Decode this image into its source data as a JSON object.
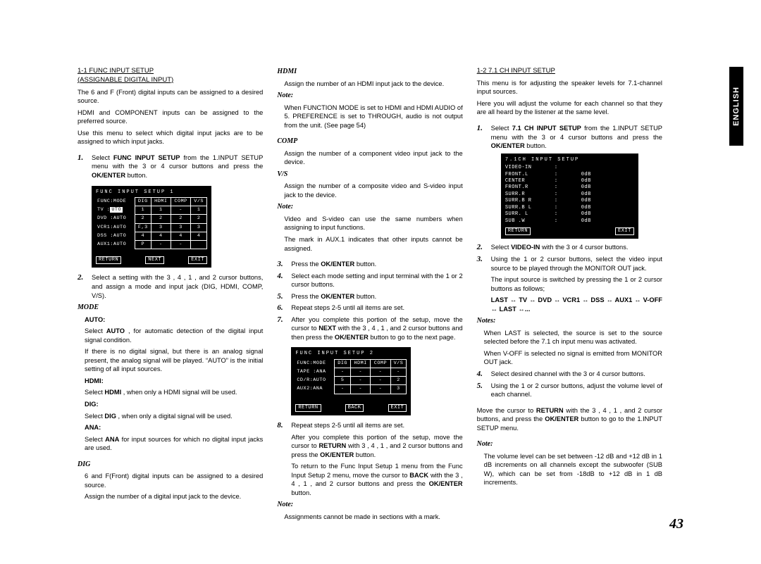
{
  "side_tab": "ENGLISH",
  "page_number": "43",
  "col1": {
    "title_line1": "1-1  FUNC INPUT SETUP",
    "title_line2": "(ASSIGNABLE DIGITAL INPUT)",
    "intro1": "The 6 and F (Front) digital inputs can be assigned to a desired source.",
    "intro2": "HDMI and COMPONENT inputs can be assigned to the preferred source.",
    "intro3": "Use this menu to select which digital input jacks are to be assigned to which input jacks.",
    "step1_a": "Select ",
    "step1_b": "FUNC INPUT SETUP",
    "step1_c": " from the 1.INPUT SETUP menu with the 3 or 4 cursor buttons and press the ",
    "step1_d": "OK/ENTER",
    "step1_e": " button.",
    "panel1": {
      "title": "FUNC INPUT SETUP 1",
      "head": [
        "FUNC:MODE",
        "DIG",
        "HDMI",
        "COMP",
        "V/S"
      ],
      "rows": [
        [
          "TV   :",
          "UTO",
          "1",
          "1",
          "-",
          "1"
        ],
        [
          "DVD  :AUTO",
          "",
          "2",
          "2",
          "2",
          "2"
        ],
        [
          "VCR1:AUTO",
          "",
          "F,3",
          "3",
          "3",
          "3"
        ],
        [
          "DSS  :AUTO",
          "",
          "4",
          "4",
          "4",
          "4"
        ],
        [
          "AUX1:AUTO",
          "",
          "P",
          "-",
          "-",
          ""
        ]
      ],
      "footer": [
        "RETURN",
        "NEXT",
        "EXIT"
      ]
    },
    "step2": "Select a setting with the 3 , 4 , 1 , and 2 cursor buttons, and assign a mode and input jack (DIG, HDMI, COMP, V/S).",
    "mode_h": "MODE",
    "auto_h": "AUTO:",
    "auto_1": "Select ",
    "auto_2": "AUTO",
    "auto_3": " , for automatic detection of the digital input signal condition.",
    "auto_4": "If there is no digital signal, but there is an analog signal present, the analog signal will be played. “AUTO” is the initial setting of all input sources.",
    "hdmi_h": "HDMI:",
    "hdmi_1": "Select ",
    "hdmi_2": "HDMI",
    "hdmi_3": " , when only a HDMI signal will be used.",
    "dig_h": "DIG:",
    "dig_1": "Select ",
    "dig_2": "DIG",
    "dig_3": " , when only a digital signal will be used.",
    "ana_h": "ANA:",
    "ana_1": "Select ",
    "ana_2": "ANA",
    "ana_3": " for input sources for which no digital input jacks are used.",
    "dig_sec": "DIG",
    "dig_p1": "6 and F(Front) digital inputs can be assigned to a desired source.",
    "dig_p2": "Assign the number of a digital input jack to the device."
  },
  "col2": {
    "hdmi_h": "HDMI",
    "hdmi_p": "Assign the number of an HDMI input jack to the device.",
    "note1_h": "Note:",
    "note1_p": "When FUNCTION MODE is set to HDMI and HDMI AUDIO of 5. PREFERENCE is set to THROUGH, audio is not output from the unit. (See page 54)",
    "comp_h": "COMP",
    "comp_p": "Assign the number of a component video input jack to the device.",
    "vs_h": "V/S",
    "vs_p": "Assign the number of a composite video and S-video input jack to the device.",
    "note2_h": "Note:",
    "note2_p1": "Video and S-video can use the same numbers when assigning to input functions.",
    "note2_p2": "The     mark in AUX.1 indicates that other inputs cannot be assigned.",
    "step3": "Press the OK/ENTER button.",
    "step3_a": "Press the ",
    "step3_b": "OK/ENTER",
    "step3_c": " button.",
    "step4": "Select each mode setting and input terminal with the 1 or 2 cursor buttons.",
    "step5_a": "Press the ",
    "step5_b": "OK/ENTER",
    "step5_c": " button.",
    "step6": "Repeat steps 2-5 until all items are set.",
    "step7_a": "After you complete this portion of the setup, move the cursor to ",
    "step7_b": "NEXT",
    "step7_c": " with the 3 , 4 , 1 , and 2 cursor buttons and then press the ",
    "step7_d": "OK/ENTER",
    "step7_e": " button to go to the next page.",
    "panel2": {
      "title": "FUNC INPUT SETUP 2",
      "head": [
        "FUNC:MODE",
        "DIG",
        "HDMI",
        "COMP",
        "V/S"
      ],
      "rows": [
        [
          "TAPE :ANA",
          "-",
          "-",
          "-",
          "-"
        ],
        [
          "CD/R:AUTO",
          "5",
          "-",
          "-",
          "2"
        ],
        [
          "AUX2:ANA",
          "-",
          "-",
          "-",
          "3"
        ]
      ],
      "footer": [
        "RETURN",
        "BACK",
        "EXIT"
      ]
    },
    "step8": "Repeat steps 2-5 until all items are set.",
    "step8_p1_a": "After you complete this portion of the setup, move the cursor to ",
    "step8_p1_b": "RETURN",
    "step8_p1_c": " with 3 , 4 , 1 , and 2 cursor buttons and press the ",
    "step8_p1_d": "OK/ENTER",
    "step8_p1_e": " button.",
    "step8_p2_a": "To return to the Func Input Setup 1 menu from the Func Input Setup 2 menu, move the cursor to ",
    "step8_p2_b": "BACK",
    "step8_p2_c": " with the 3 , 4 , 1 , and 2 cursor buttons and press the ",
    "step8_p2_d": "OK/ENTER",
    "step8_p2_e": " button.",
    "note3_h": "Note:",
    "note3_p": "Assignments cannot be made in sections with a mark."
  },
  "col3": {
    "title": "1-2  7.1 CH INPUT SETUP",
    "intro1": "This menu is for adjusting the speaker levels for 7.1-channel input sources.",
    "intro2": "Here you will adjust the volume for each channel so that they are all heard by the listener at the same level.",
    "step1_a": "Select ",
    "step1_b": "7.1 CH INPUT SETUP",
    "step1_c": " from the 1.INPUT SETUP menu with the 3 or 4 cursor buttons and press the ",
    "step1_d": "OK/ENTER",
    "step1_e": " button.",
    "panel": {
      "title": "7.1CH INPUT SETUP",
      "rows": [
        [
          "VIDEO-IN",
          ":",
          ""
        ],
        [
          "FRONT.L",
          ":",
          "0dB"
        ],
        [
          "CENTER",
          ":",
          "0dB"
        ],
        [
          "FRONT.R",
          ":",
          "0dB"
        ],
        [
          "SURR.R",
          ":",
          "0dB"
        ],
        [
          "SURR.B R",
          ":",
          "0dB"
        ],
        [
          "SURR.B L",
          ":",
          "0dB"
        ],
        [
          "SURR. L",
          ":",
          "0dB"
        ],
        [
          "SUB .W",
          ":",
          "0dB"
        ]
      ],
      "footer": [
        "RETURN",
        "EXIT"
      ]
    },
    "step2_a": "Select ",
    "step2_b": "VIDEO-IN",
    "step2_c": " with the 3 or 4 cursor buttons.",
    "step3": "Using the 1 or 2 cursor buttons, select the video input source to be played through the MONITOR OUT jack.",
    "step3_p": "The input source is switched by pressing the 1 or 2 cursor buttons as follows;",
    "chain": "LAST ↔ TV ↔ DVD ↔ VCR1 ↔ DSS ↔ AUX1 ↔ V-OFF ↔ LAST ↔...",
    "notes_h": "Notes:",
    "notes_p1": "When LAST is selected, the source is set to the source selected before the 7.1 ch input menu was activated.",
    "notes_p2": "When V-OFF is selected no signal is emitted from MONITOR OUT jack.",
    "step4": "Select desired channel with the 3 or 4 cursor buttons.",
    "step5": "Using the 1 or 2 cursor buttons, adjust the volume level of each channel.",
    "ret_a": "Move the cursor to ",
    "ret_b": "RETURN",
    "ret_c": " with the 3 , 4 , 1 , and 2 cursor buttons, and press the ",
    "ret_d": "OK/ENTER",
    "ret_e": " button to go to the 1.INPUT SETUP menu.",
    "note_h": "Note:",
    "note_p": "The volume level can be set between -12 dB and +12 dB in 1 dB increments on all channels except the subwoofer (SUB W), which can be set from -18dB to +12 dB in 1 dB increments."
  }
}
